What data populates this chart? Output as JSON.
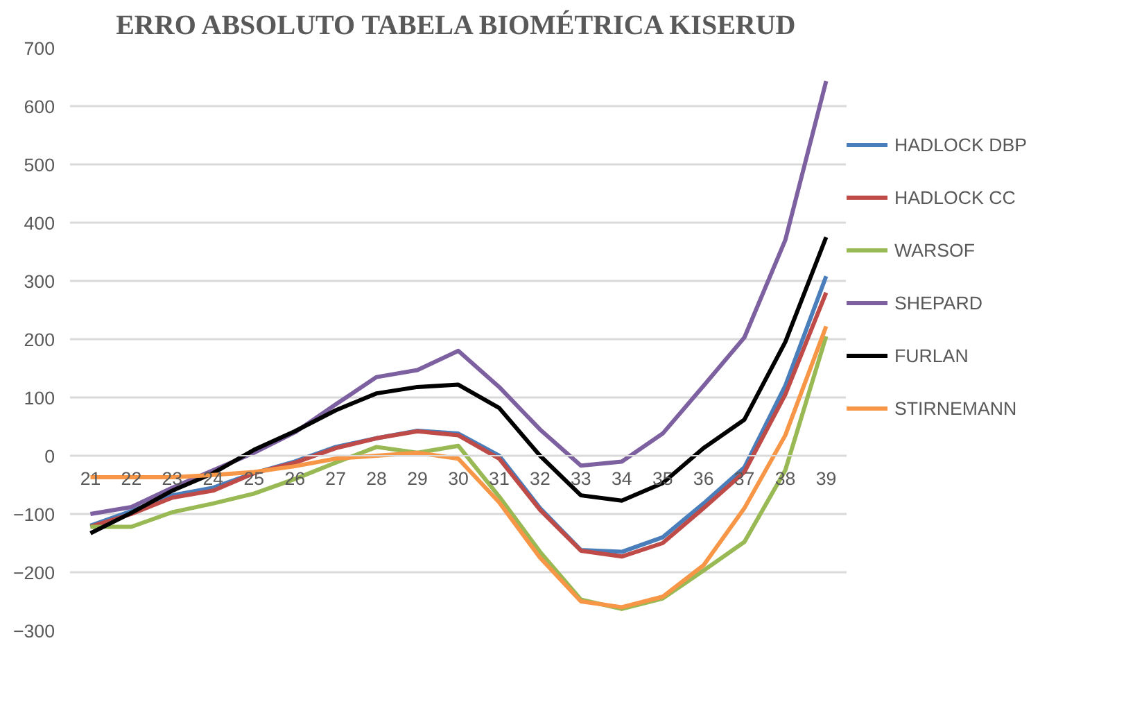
{
  "chart_data": {
    "type": "line",
    "title": "ERRO ABSOLUTO TABELA BIOMÉTRICA KISERUD",
    "categories": [
      "21",
      "22",
      "23",
      "24",
      "25",
      "26",
      "27",
      "28",
      "29",
      "30",
      "31",
      "32",
      "33",
      "34",
      "35",
      "36",
      "37",
      "38",
      "39"
    ],
    "ylim": [
      -300,
      700
    ],
    "yticks": [
      -300,
      -200,
      -100,
      0,
      100,
      200,
      300,
      400,
      500,
      600,
      700
    ],
    "grid": "y",
    "legend": "right",
    "marker": "none",
    "line_style": "solid",
    "series": [
      {
        "name": "HADLOCK DBP",
        "color": "#4a7ebb",
        "values": [
          -120,
          -95,
          -68,
          -55,
          -30,
          -10,
          15,
          30,
          43,
          38,
          0,
          -90,
          -162,
          -165,
          -140,
          -82,
          -20,
          120,
          308
        ]
      },
      {
        "name": "HADLOCK CC",
        "color": "#be4b48",
        "values": [
          -122,
          -100,
          -72,
          -60,
          -30,
          -12,
          13,
          30,
          42,
          35,
          -5,
          -93,
          -163,
          -173,
          -150,
          -90,
          -28,
          105,
          280
        ]
      },
      {
        "name": "WARSOF",
        "color": "#98b954",
        "values": [
          -122,
          -122,
          -97,
          -82,
          -65,
          -40,
          -12,
          15,
          5,
          17,
          -70,
          -165,
          -247,
          -263,
          -245,
          -197,
          -148,
          -25,
          205
        ]
      },
      {
        "name": "SHEPARD",
        "color": "#7d60a0",
        "values": [
          -100,
          -88,
          -55,
          -25,
          5,
          40,
          88,
          135,
          147,
          180,
          118,
          45,
          -17,
          -10,
          38,
          120,
          203,
          370,
          643
        ]
      },
      {
        "name": "FURLAN",
        "color": "#000000",
        "values": [
          -133,
          -98,
          -60,
          -30,
          10,
          42,
          78,
          107,
          118,
          122,
          82,
          0,
          -68,
          -77,
          -47,
          13,
          62,
          195,
          375
        ]
      },
      {
        "name": "STIRNEMANN",
        "color": "#f79646",
        "values": [
          -37,
          -37,
          -37,
          -33,
          -28,
          -18,
          -5,
          0,
          5,
          -5,
          -80,
          -175,
          -250,
          -260,
          -242,
          -188,
          -90,
          35,
          222
        ]
      }
    ]
  }
}
